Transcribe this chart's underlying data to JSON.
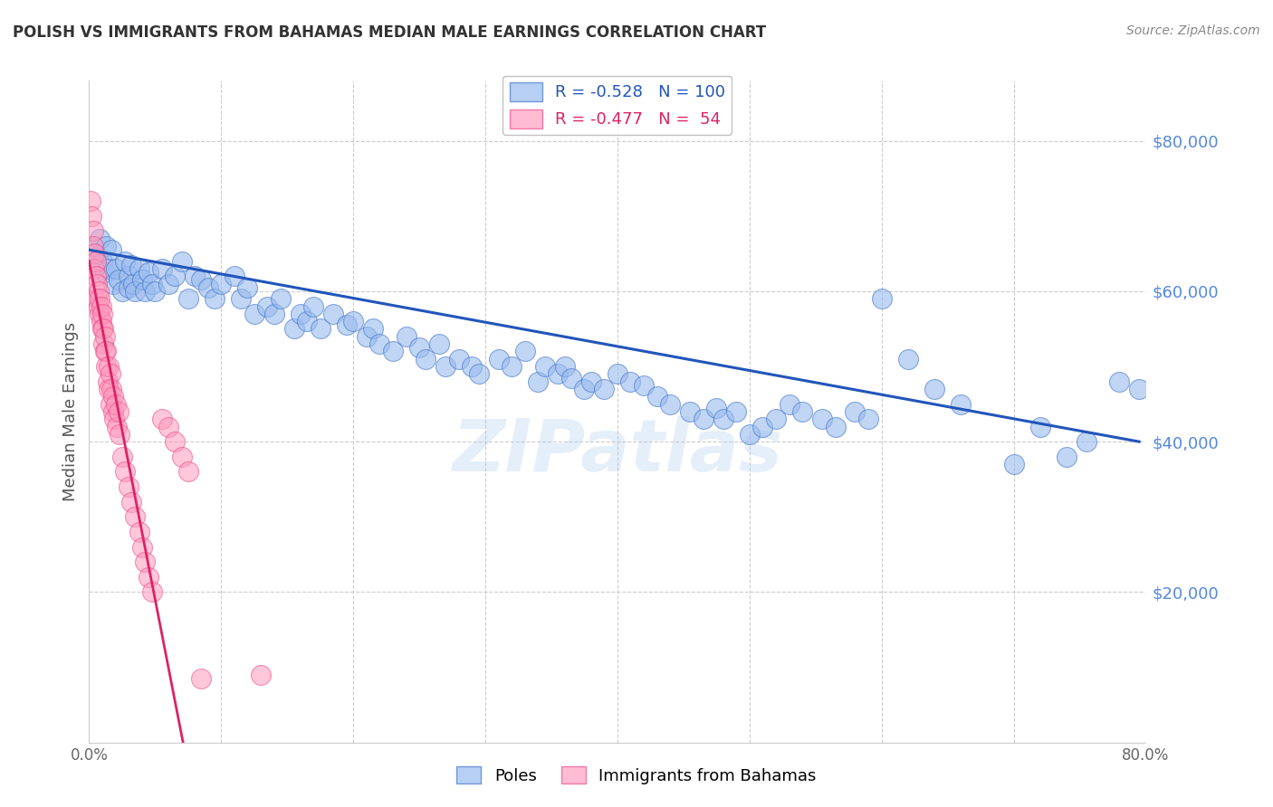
{
  "title": "POLISH VS IMMIGRANTS FROM BAHAMAS MEDIAN MALE EARNINGS CORRELATION CHART",
  "source": "Source: ZipAtlas.com",
  "ylabel": "Median Male Earnings",
  "xlim": [
    0.0,
    0.8
  ],
  "ylim": [
    0,
    88000
  ],
  "yticks": [
    20000,
    40000,
    60000,
    80000
  ],
  "ytick_labels": [
    "$20,000",
    "$40,000",
    "$60,000",
    "$80,000"
  ],
  "legend_blue_r": "R = -0.528",
  "legend_blue_n": "N = 100",
  "legend_pink_r": "R = -0.477",
  "legend_pink_n": "N =  54",
  "label_poles": "Poles",
  "label_immigrants": "Immigrants from Bahamas",
  "blue_color": "#99BBEE",
  "pink_color": "#FF99BB",
  "blue_edge_color": "#4477CC",
  "pink_edge_color": "#EE4488",
  "blue_line_color": "#2255BB",
  "pink_line_color": "#DD2266",
  "axis_label_color": "#5588DD",
  "watermark": "ZIPatlas",
  "blue_line_x0": 0.0,
  "blue_line_x1": 0.795,
  "blue_line_y0": 65500,
  "blue_line_y1": 40000,
  "pink_line_x0": 0.0,
  "pink_line_y0": 64000,
  "pink_line_slope": -900000,
  "blue_scatter_x": [
    0.005,
    0.008,
    0.01,
    0.012,
    0.013,
    0.015,
    0.017,
    0.018,
    0.02,
    0.022,
    0.025,
    0.027,
    0.03,
    0.03,
    0.032,
    0.033,
    0.035,
    0.038,
    0.04,
    0.042,
    0.045,
    0.048,
    0.05,
    0.055,
    0.06,
    0.065,
    0.07,
    0.075,
    0.08,
    0.085,
    0.09,
    0.095,
    0.1,
    0.11,
    0.115,
    0.12,
    0.125,
    0.135,
    0.14,
    0.145,
    0.155,
    0.16,
    0.165,
    0.17,
    0.175,
    0.185,
    0.195,
    0.2,
    0.21,
    0.215,
    0.22,
    0.23,
    0.24,
    0.25,
    0.255,
    0.265,
    0.27,
    0.28,
    0.29,
    0.295,
    0.31,
    0.32,
    0.33,
    0.34,
    0.345,
    0.355,
    0.36,
    0.365,
    0.375,
    0.38,
    0.39,
    0.4,
    0.41,
    0.42,
    0.43,
    0.44,
    0.455,
    0.465,
    0.475,
    0.48,
    0.49,
    0.5,
    0.51,
    0.52,
    0.53,
    0.54,
    0.555,
    0.565,
    0.58,
    0.59,
    0.6,
    0.62,
    0.64,
    0.66,
    0.7,
    0.72,
    0.74,
    0.755,
    0.78,
    0.795
  ],
  "blue_scatter_y": [
    65000,
    67000,
    64000,
    62500,
    66000,
    63000,
    65500,
    61000,
    63000,
    61500,
    60000,
    64000,
    62000,
    60500,
    63500,
    61000,
    60000,
    63000,
    61500,
    60000,
    62500,
    61000,
    60000,
    63000,
    61000,
    62000,
    64000,
    59000,
    62000,
    61500,
    60500,
    59000,
    61000,
    62000,
    59000,
    60500,
    57000,
    58000,
    57000,
    59000,
    55000,
    57000,
    56000,
    58000,
    55000,
    57000,
    55500,
    56000,
    54000,
    55000,
    53000,
    52000,
    54000,
    52500,
    51000,
    53000,
    50000,
    51000,
    50000,
    49000,
    51000,
    50000,
    52000,
    48000,
    50000,
    49000,
    50000,
    48500,
    47000,
    48000,
    47000,
    49000,
    48000,
    47500,
    46000,
    45000,
    44000,
    43000,
    44500,
    43000,
    44000,
    41000,
    42000,
    43000,
    45000,
    44000,
    43000,
    42000,
    44000,
    43000,
    59000,
    51000,
    47000,
    45000,
    37000,
    42000,
    38000,
    40000,
    48000,
    47000
  ],
  "pink_scatter_x": [
    0.001,
    0.002,
    0.003,
    0.003,
    0.004,
    0.004,
    0.005,
    0.005,
    0.006,
    0.006,
    0.007,
    0.007,
    0.008,
    0.008,
    0.009,
    0.009,
    0.01,
    0.01,
    0.011,
    0.011,
    0.012,
    0.012,
    0.013,
    0.013,
    0.014,
    0.015,
    0.015,
    0.016,
    0.016,
    0.017,
    0.018,
    0.018,
    0.019,
    0.02,
    0.021,
    0.022,
    0.023,
    0.025,
    0.027,
    0.03,
    0.032,
    0.035,
    0.038,
    0.04,
    0.042,
    0.045,
    0.048,
    0.055,
    0.06,
    0.065,
    0.07,
    0.075,
    0.085,
    0.13
  ],
  "pink_scatter_y": [
    72000,
    70000,
    68000,
    66000,
    65000,
    63000,
    64000,
    62000,
    61000,
    59000,
    60000,
    58000,
    57000,
    59000,
    56000,
    58000,
    55000,
    57000,
    53000,
    55000,
    52000,
    54000,
    50000,
    52000,
    48000,
    50000,
    47000,
    49000,
    45000,
    47000,
    44000,
    46000,
    43000,
    45000,
    42000,
    44000,
    41000,
    38000,
    36000,
    34000,
    32000,
    30000,
    28000,
    26000,
    24000,
    22000,
    20000,
    43000,
    42000,
    40000,
    38000,
    36000,
    8500,
    9000
  ]
}
